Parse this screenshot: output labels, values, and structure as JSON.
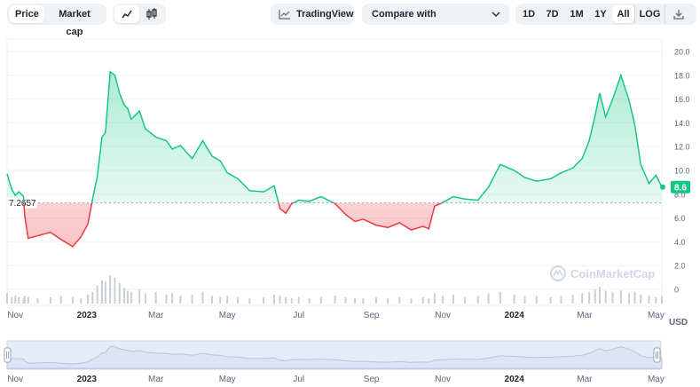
{
  "toolbar": {
    "price_tab": "Price",
    "market_cap_tab": "Market cap",
    "line_icon": "line-chart-icon",
    "candle_icon": "candlestick-icon",
    "tradingview_label": "TradingView",
    "compare_label": "Compare with",
    "ranges": [
      "1D",
      "7D",
      "1M",
      "1Y",
      "All"
    ],
    "active_range": "All",
    "log_label": "LOG",
    "download_icon": "download-icon"
  },
  "watermark": "CoinMarketCap",
  "colors": {
    "up": "#16c784",
    "down": "#ea3943",
    "volume": "#c8cdd6",
    "grid": "#eff2f5",
    "navigator_fill": "#dce4f5"
  },
  "chart_data": {
    "type": "line",
    "currency_label": "USD",
    "baseline": 7.2657,
    "baseline_label": "7.2657",
    "current_value": 8.6,
    "current_label": "8.6",
    "ylim": [
      0,
      20
    ],
    "y_ticks": [
      "0",
      "2.0",
      "4.0",
      "6.0",
      "8.0",
      "10.0",
      "12.0",
      "14.0",
      "16.0",
      "18.0",
      "20.0"
    ],
    "x_ticks": [
      "Nov",
      "2023",
      "Mar",
      "May",
      "Jul",
      "Sep",
      "Nov",
      "2024",
      "Mar",
      "May"
    ],
    "x_tick_dates": [
      "2022-11-01",
      "2023-01-01",
      "2023-03-01",
      "2023-05-01",
      "2023-07-01",
      "2023-09-01",
      "2023-11-01",
      "2024-01-01",
      "2024-03-01",
      "2024-05-01"
    ],
    "x_range": [
      "2022-10-25",
      "2024-05-06"
    ],
    "series": [
      {
        "x": [
          "2022-10-25",
          "2022-10-29",
          "2022-11-01",
          "2022-11-04",
          "2022-11-08",
          "2022-11-09",
          "2022-11-12",
          "2022-11-20",
          "2022-12-01",
          "2022-12-10",
          "2022-12-20",
          "2022-12-27",
          "2023-01-02",
          "2023-01-06",
          "2023-01-10",
          "2023-01-14",
          "2023-01-17",
          "2023-01-21",
          "2023-01-25",
          "2023-01-29",
          "2023-02-02",
          "2023-02-05",
          "2023-02-08",
          "2023-02-15",
          "2023-02-20",
          "2023-03-01",
          "2023-03-10",
          "2023-03-15",
          "2023-03-22",
          "2023-04-01",
          "2023-04-10",
          "2023-04-18",
          "2023-04-25",
          "2023-05-01",
          "2023-05-10",
          "2023-05-20",
          "2023-06-01",
          "2023-06-10",
          "2023-06-15",
          "2023-06-20",
          "2023-06-25",
          "2023-07-01",
          "2023-07-10",
          "2023-07-20",
          "2023-08-01",
          "2023-08-10",
          "2023-08-18",
          "2023-08-25",
          "2023-09-05",
          "2023-09-15",
          "2023-09-25",
          "2023-10-05",
          "2023-10-15",
          "2023-10-20",
          "2023-10-25",
          "2023-11-01",
          "2023-11-10",
          "2023-11-20",
          "2023-12-01",
          "2023-12-10",
          "2023-12-20",
          "2024-01-01",
          "2024-01-10",
          "2024-01-20",
          "2024-02-01",
          "2024-02-10",
          "2024-02-20",
          "2024-02-28",
          "2024-03-05",
          "2024-03-10",
          "2024-03-14",
          "2024-03-19",
          "2024-03-25",
          "2024-04-01",
          "2024-04-08",
          "2024-04-13",
          "2024-04-18",
          "2024-04-25",
          "2024-05-01",
          "2024-05-06"
        ],
        "y": [
          9.7,
          8.4,
          7.9,
          8.2,
          7.8,
          6.2,
          4.3,
          4.5,
          4.8,
          4.2,
          3.6,
          4.4,
          5.5,
          7.6,
          9.5,
          12.8,
          13.2,
          18.3,
          18.0,
          16.5,
          15.5,
          15.2,
          14.3,
          15.0,
          13.5,
          12.8,
          12.5,
          11.8,
          12.1,
          11.0,
          12.5,
          11.2,
          10.8,
          9.8,
          9.3,
          8.3,
          8.2,
          8.7,
          6.8,
          6.4,
          7.2,
          7.5,
          7.4,
          7.8,
          7.2,
          6.3,
          5.7,
          5.9,
          5.4,
          5.2,
          5.6,
          5.0,
          5.3,
          5.1,
          7.0,
          7.3,
          7.8,
          7.6,
          7.5,
          8.6,
          10.5,
          10.0,
          9.4,
          9.1,
          9.3,
          9.8,
          10.2,
          11.0,
          12.5,
          14.6,
          16.5,
          14.5,
          16.0,
          18.0,
          15.9,
          13.8,
          10.5,
          8.9,
          9.6,
          8.6
        ]
      }
    ],
    "volume": [
      8,
      5,
      6,
      5,
      4,
      6,
      5,
      4,
      5,
      6,
      5,
      4,
      7,
      9,
      14,
      18,
      17,
      22,
      20,
      16,
      12,
      10,
      9,
      11,
      8,
      9,
      7,
      8,
      6,
      7,
      9,
      6,
      5,
      6,
      5,
      4,
      5,
      7,
      6,
      5,
      4,
      5,
      4,
      5,
      6,
      5,
      4,
      4,
      5,
      4,
      5,
      4,
      5,
      4,
      8,
      6,
      7,
      5,
      6,
      8,
      9,
      7,
      6,
      6,
      5,
      6,
      7,
      8,
      9,
      11,
      13,
      10,
      9,
      10,
      8,
      9,
      7,
      6,
      5,
      6
    ]
  }
}
